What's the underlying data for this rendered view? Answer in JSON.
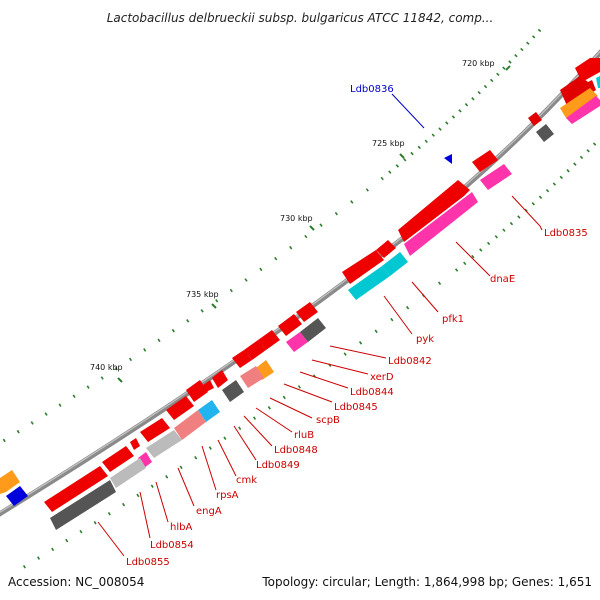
{
  "title": "Lactobacillus delbrueckii subsp. bulgaricus ATCC 11842, comp...",
  "footer": {
    "accession": "Accession: NC_008054",
    "summary": "Topology: circular; Length: 1,864,998 bp; Genes: 1,651"
  },
  "ticks": [
    "720 kbp",
    "725 kbp",
    "730 kbp",
    "735 kbp",
    "740 kbp"
  ],
  "colors": {
    "backbone": "#8a8a8a",
    "gene_label": "#cc0000",
    "highlight_label": "#0000cc",
    "tick_mark": "#2e7d2e"
  },
  "labels": [
    {
      "name": "gene-label-ldb0836",
      "text": "Ldb0836",
      "color": "#0000cc"
    },
    {
      "name": "gene-label-ldb0835",
      "text": "Ldb0835",
      "color": "#cc0000"
    },
    {
      "name": "gene-label-dnae",
      "text": "dnaE",
      "color": "#cc0000"
    },
    {
      "name": "gene-label-pfk1",
      "text": "pfk1",
      "color": "#cc0000"
    },
    {
      "name": "gene-label-pyk",
      "text": "pyk",
      "color": "#cc0000"
    },
    {
      "name": "gene-label-ldb0842",
      "text": "Ldb0842",
      "color": "#cc0000"
    },
    {
      "name": "gene-label-xerd",
      "text": "xerD",
      "color": "#cc0000"
    },
    {
      "name": "gene-label-ldb0844",
      "text": "Ldb0844",
      "color": "#cc0000"
    },
    {
      "name": "gene-label-ldb0845",
      "text": "Ldb0845",
      "color": "#cc0000"
    },
    {
      "name": "gene-label-scpb",
      "text": "scpB",
      "color": "#cc0000"
    },
    {
      "name": "gene-label-rlub",
      "text": "rluB",
      "color": "#cc0000"
    },
    {
      "name": "gene-label-ldb0848",
      "text": "Ldb0848",
      "color": "#cc0000"
    },
    {
      "name": "gene-label-ldb0849",
      "text": "Ldb0849",
      "color": "#cc0000"
    },
    {
      "name": "gene-label-cmk",
      "text": "cmk",
      "color": "#cc0000"
    },
    {
      "name": "gene-label-rpsa",
      "text": "rpsA",
      "color": "#cc0000"
    },
    {
      "name": "gene-label-enga",
      "text": "engA",
      "color": "#cc0000"
    },
    {
      "name": "gene-label-hlba",
      "text": "hlbA",
      "color": "#cc0000"
    },
    {
      "name": "gene-label-ldb0854",
      "text": "Ldb0854",
      "color": "#cc0000"
    },
    {
      "name": "gene-label-ldb0855",
      "text": "Ldb0855",
      "color": "#cc0000"
    }
  ]
}
